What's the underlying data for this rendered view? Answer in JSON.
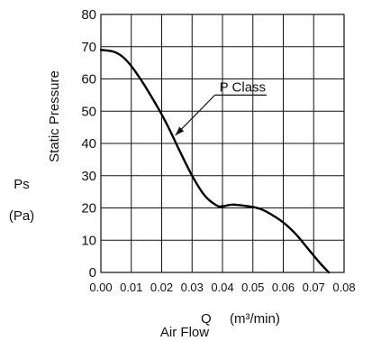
{
  "chart_data": {
    "type": "line",
    "title": "",
    "xlabel": "Air Flow",
    "x_quantity": "Q",
    "x_unit": "(m³/min)",
    "ylabel": "Static Pressure",
    "y_quantity": "Ps",
    "y_unit": "(Pa)",
    "xlim": [
      0,
      0.08
    ],
    "ylim": [
      0,
      80
    ],
    "x_ticks": [
      "0.00",
      "0.01",
      "0.02",
      "0.03",
      "0.04",
      "0.05",
      "0.06",
      "0.07",
      "0.08"
    ],
    "y_ticks": [
      "0",
      "10",
      "20",
      "30",
      "40",
      "50",
      "60",
      "70",
      "80"
    ],
    "grid": true,
    "annotation": "P Class",
    "series": [
      {
        "name": "P Class",
        "x": [
          0.0,
          0.004,
          0.007,
          0.01,
          0.013,
          0.016,
          0.02,
          0.023,
          0.026,
          0.03,
          0.034,
          0.038,
          0.04,
          0.043,
          0.046,
          0.05,
          0.053,
          0.056,
          0.06,
          0.064,
          0.068,
          0.072,
          0.075
        ],
        "y": [
          69,
          68.5,
          67,
          64,
          60,
          55.5,
          49,
          43.5,
          37.5,
          30,
          24,
          20.8,
          20.5,
          21,
          20.8,
          20.3,
          19.5,
          18,
          15.5,
          12,
          7.5,
          3,
          0
        ]
      }
    ]
  }
}
